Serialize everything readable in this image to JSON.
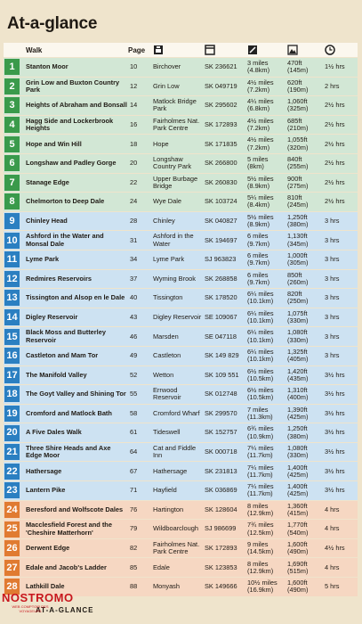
{
  "title": "At-a-glance",
  "header": {
    "walk": "Walk",
    "page": "Page"
  },
  "table": {
    "sections": [
      {
        "color": "#3a9a4b",
        "background": "#d2e7d5",
        "rows": [
          [
            "1",
            "Stanton Moor",
            "10",
            "Birchover",
            "SK 236621",
            "3 miles (4.8km)",
            "470ft (145m)",
            "1½ hrs"
          ],
          [
            "2",
            "Grin Low and Buxton Country Park",
            "12",
            "Grin Low",
            "SK 049719",
            "4½ miles (7.2km)",
            "620ft (190m)",
            "2 hrs"
          ],
          [
            "3",
            "Heights of Abraham and Bonsall",
            "14",
            "Matlock Bridge Park",
            "SK 295602",
            "4¼ miles (6.8km)",
            "1,060ft (325m)",
            "2½ hrs"
          ],
          [
            "4",
            "Hagg Side and Lockerbrook Heights",
            "16",
            "Fairholmes Nat. Park Centre",
            "SK 172893",
            "4½ miles (7.2km)",
            "685ft (210m)",
            "2½ hrs"
          ],
          [
            "5",
            "Hope and Win Hill",
            "18",
            "Hope",
            "SK 171835",
            "4½ miles (7.2km)",
            "1,055ft (320m)",
            "2½ hrs"
          ],
          [
            "6",
            "Longshaw and Padley Gorge",
            "20",
            "Longshaw Country Park",
            "SK 266800",
            "5 miles (8km)",
            "840ft (255m)",
            "2½ hrs"
          ],
          [
            "7",
            "Stanage Edge",
            "22",
            "Upper Burbage Bridge",
            "SK 260830",
            "5½ miles (8.9km)",
            "900ft (275m)",
            "2½ hrs"
          ],
          [
            "8",
            "Chelmorton to Deep Dale",
            "24",
            "Wye Dale",
            "SK 103724",
            "5¼ miles (8.4km)",
            "810ft (245m)",
            "2½ hrs"
          ]
        ]
      },
      {
        "color": "#2b7fc1",
        "background": "#cde2f2",
        "rows": [
          [
            "9",
            "Chinley Head",
            "28",
            "Chinley",
            "SK 040827",
            "5½ miles (8.9km)",
            "1,250ft (380m)",
            "3 hrs"
          ],
          [
            "10",
            "Ashford in the Water and Monsal Dale",
            "31",
            "Ashford in the Water",
            "SK 194697",
            "6 miles (9.7km)",
            "1,130ft (345m)",
            "3 hrs"
          ],
          [
            "11",
            "Lyme Park",
            "34",
            "Lyme Park",
            "SJ 963823",
            "6 miles (9.7km)",
            "1,000ft (305m)",
            "3 hrs"
          ],
          [
            "12",
            "Redmires Reservoirs",
            "37",
            "Wyming Brook",
            "SK 268858",
            "6 miles (9.7km)",
            "850ft (260m)",
            "3 hrs"
          ],
          [
            "13",
            "Tissington and Alsop en le Dale",
            "40",
            "Tissington",
            "SK 178520",
            "6¼ miles (10.1km)",
            "820ft (250m)",
            "3 hrs"
          ],
          [
            "14",
            "Digley Reservoir",
            "43",
            "Digley Reservoir",
            "SE 109067",
            "6¼ miles (10.1km)",
            "1,075ft (330m)",
            "3 hrs"
          ],
          [
            "15",
            "Black Moss and Butterley Reservoir",
            "46",
            "Marsden",
            "SE 047118",
            "6¼ miles (10.1km)",
            "1,080ft (330m)",
            "3 hrs"
          ],
          [
            "16",
            "Castleton and Mam Tor",
            "49",
            "Castleton",
            "SK 149 829",
            "6¼ miles (10.1km)",
            "1,325ft (405m)",
            "3 hrs"
          ],
          [
            "17",
            "The Manifold Valley",
            "52",
            "Wetton",
            "SK 109 551",
            "6½ miles (10.5km)",
            "1,420ft (435m)",
            "3½ hrs"
          ],
          [
            "18",
            "The Goyt Valley and Shining Tor",
            "55",
            "Errwood Reservoir",
            "SK 012748",
            "6½ miles (10.5km)",
            "1,310ft (400m)",
            "3½ hrs"
          ],
          [
            "19",
            "Cromford and Matlock Bath",
            "58",
            "Cromford Wharf",
            "SK 299570",
            "7 miles (11.3km)",
            "1,390ft (425m)",
            "3½ hrs"
          ],
          [
            "20",
            "A Five Dales Walk",
            "61",
            "Tideswell",
            "SK 152757",
            "6¾ miles (10.9km)",
            "1,250ft (380m)",
            "3½ hrs"
          ],
          [
            "21",
            "Three Shire Heads and Axe Edge Moor",
            "64",
            "Cat and Fiddle Inn",
            "SK 000718",
            "7¼ miles (11.7km)",
            "1,080ft (330m)",
            "3½ hrs"
          ],
          [
            "22",
            "Hathersage",
            "67",
            "Hathersage",
            "SK 231813",
            "7¼ miles (11.7km)",
            "1,400ft (425m)",
            "3½ hrs"
          ],
          [
            "23",
            "Lantern Pike",
            "71",
            "Hayfield",
            "SK 036869",
            "7¼ miles (11.7km)",
            "1,400ft (425m)",
            "3½ hrs"
          ]
        ]
      },
      {
        "color": "#e07b31",
        "background": "#f6d7c2",
        "rows": [
          [
            "24",
            "Beresford and Wolfscote Dales",
            "76",
            "Hartington",
            "SK 128604",
            "8 miles (12.9km)",
            "1,360ft (415m)",
            "4 hrs"
          ],
          [
            "25",
            "Macclesfield Forest and the 'Cheshire Matterhorn'",
            "79",
            "Wildboarclough",
            "SJ 986699",
            "7¾ miles (12.5km)",
            "1,770ft (540m)",
            "4 hrs"
          ],
          [
            "26",
            "Derwent Edge",
            "82",
            "Fairholmes Nat. Park Centre",
            "SK 172893",
            "9 miles (14.5km)",
            "1,600ft (490m)",
            "4½ hrs"
          ],
          [
            "27",
            "Edale and Jacob's Ladder",
            "85",
            "Edale",
            "SK 123853",
            "8 miles (12.9km)",
            "1,690ft (515m)",
            "4 hrs"
          ],
          [
            "28",
            "Lathkill Dale",
            "88",
            "Monyash",
            "SK 149666",
            "10½ miles (16.9km)",
            "1,600ft (490m)",
            "5 hrs"
          ]
        ]
      }
    ]
  },
  "footer": "AT-A-GLANCE",
  "watermark": {
    "brand": "NOSTROMO",
    "tagline": "WEB COMPTOIR DES VOYAGEURS"
  }
}
